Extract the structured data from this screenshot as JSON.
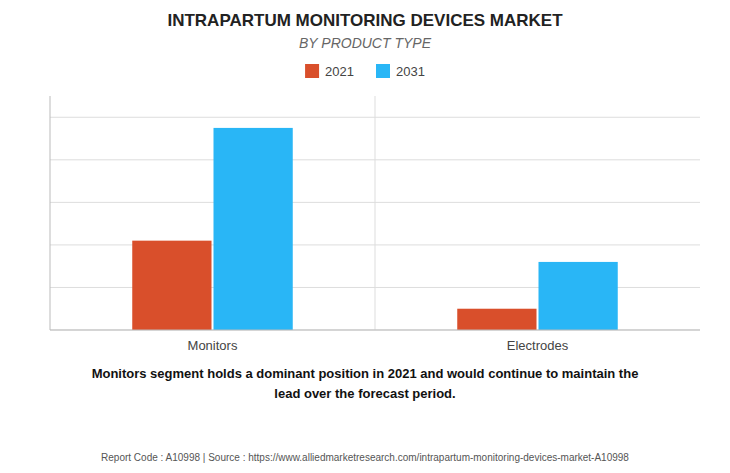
{
  "chart_data": {
    "type": "bar",
    "title": "INTRAPARTUM MONITORING DEVICES MARKET",
    "subtitle": "BY PRODUCT TYPE",
    "categories": [
      "Monitors",
      "Electrodes"
    ],
    "series": [
      {
        "name": "2021",
        "color": "#D94F2B",
        "values": [
          42,
          10
        ]
      },
      {
        "name": "2031",
        "color": "#29B6F6",
        "values": [
          95,
          32
        ]
      }
    ],
    "ylim": [
      0,
      110
    ],
    "yticks": [
      0,
      20,
      40,
      60,
      80,
      100
    ],
    "grid": true,
    "tick_labels": "x",
    "legend": "top",
    "annotations": [
      "Monitors segment holds a dominant position in 2021 and would continue to maintain the",
      "lead over the forecast period."
    ],
    "footer": "Report Code : A10998  |  Source : https://www.alliedmarketresearch.com/intrapartum-monitoring-devices-market-A10998"
  }
}
